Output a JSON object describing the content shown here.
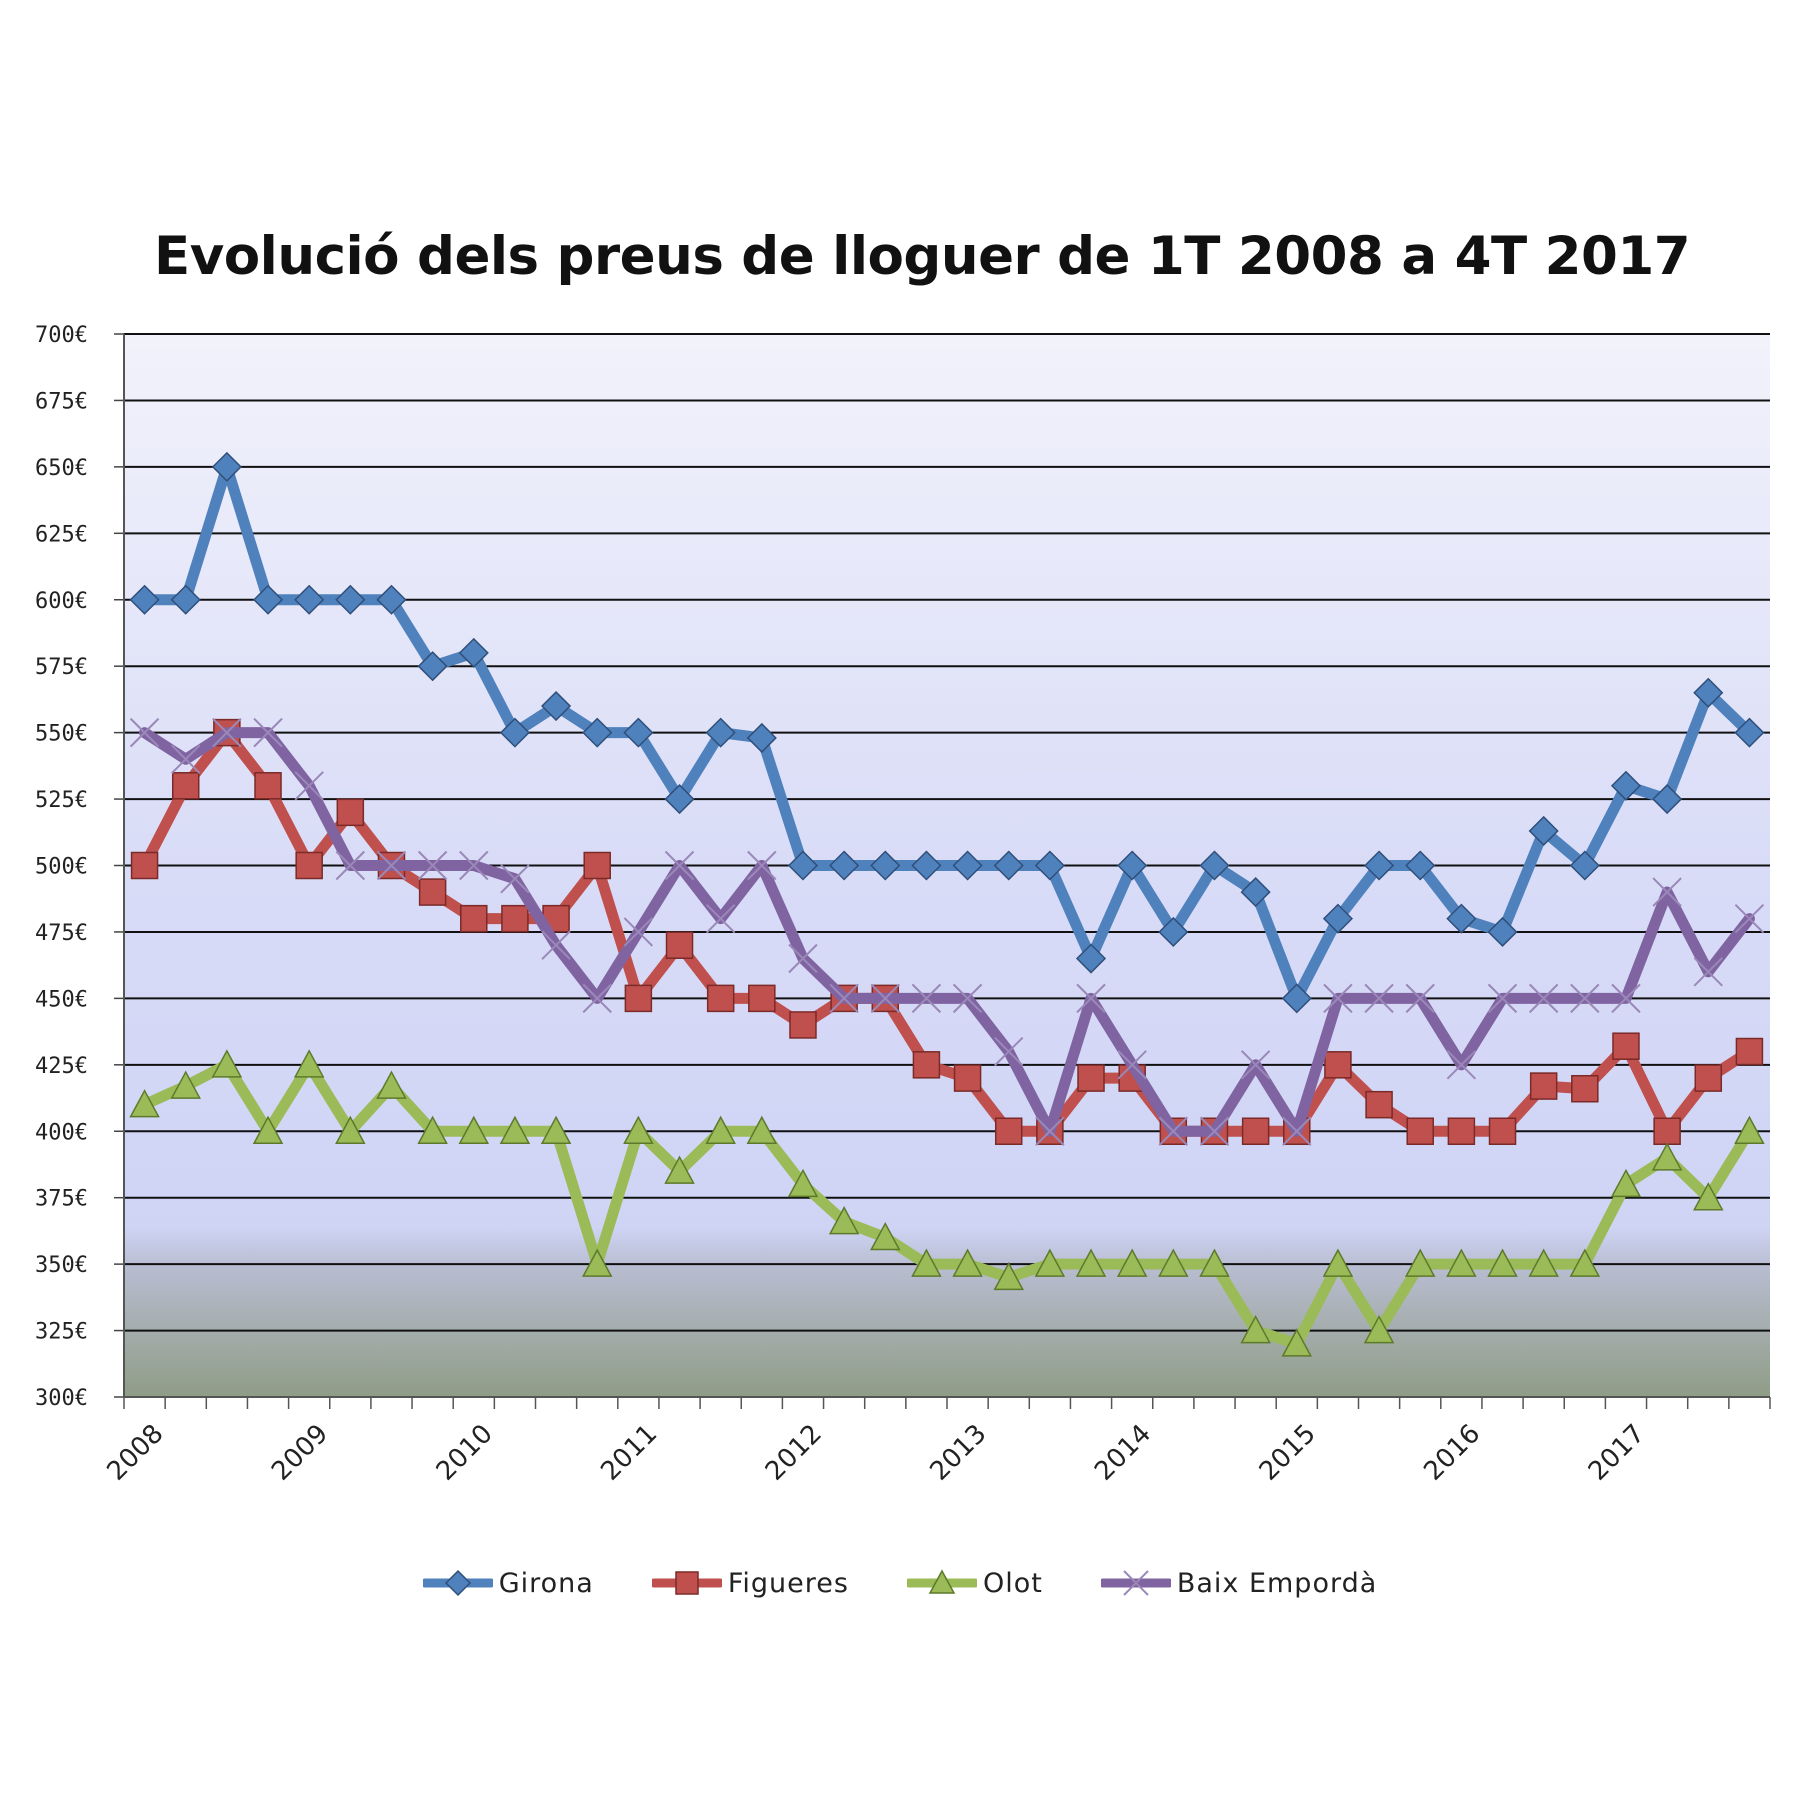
{
  "chart_data": {
    "type": "line",
    "title": "Evolució dels preus de lloguer de 1T 2008 a 4T 2017",
    "ylim": [
      300,
      700
    ],
    "y_ticks": [
      300,
      325,
      350,
      375,
      400,
      425,
      450,
      475,
      500,
      525,
      550,
      575,
      600,
      625,
      650,
      675,
      700
    ],
    "y_tick_suffix": "€",
    "x_tick_labels": [
      "2008",
      "2009",
      "2010",
      "2011",
      "2012",
      "2013",
      "2014",
      "2015",
      "2016",
      "2017"
    ],
    "points_per_year": 4,
    "grid": true,
    "legend_position": "bottom",
    "series": [
      {
        "name": "Girona",
        "color": "#4f81bd",
        "marker": "diamond",
        "values": [
          600,
          600,
          650,
          600,
          600,
          600,
          600,
          575,
          580,
          550,
          560,
          550,
          550,
          525,
          550,
          548,
          500,
          500,
          500,
          500,
          500,
          500,
          500,
          465,
          500,
          475,
          500,
          490,
          450,
          480,
          500,
          500,
          480,
          475,
          513,
          500,
          530,
          525,
          565,
          550
        ]
      },
      {
        "name": "Figueres",
        "color": "#c0504d",
        "marker": "square",
        "values": [
          500,
          530,
          550,
          530,
          500,
          520,
          500,
          490,
          480,
          480,
          480,
          500,
          450,
          470,
          450,
          450,
          440,
          450,
          450,
          425,
          420,
          400,
          400,
          420,
          420,
          400,
          400,
          400,
          400,
          425,
          410,
          400,
          400,
          400,
          417,
          416,
          432,
          400,
          420,
          430
        ]
      },
      {
        "name": "Olot",
        "color": "#9bbb59",
        "marker": "triangle",
        "values": [
          410,
          417,
          425,
          400,
          425,
          400,
          417,
          400,
          400,
          400,
          400,
          350,
          400,
          385,
          400,
          400,
          380,
          366,
          360,
          350,
          350,
          345,
          350,
          350,
          350,
          350,
          350,
          325,
          320,
          350,
          325,
          350,
          350,
          350,
          350,
          350,
          380,
          390,
          375,
          400
        ]
      },
      {
        "name": "Baix Empordà",
        "color": "#8064a2",
        "marker": "x",
        "values": [
          550,
          540,
          550,
          550,
          530,
          500,
          500,
          500,
          500,
          495,
          470,
          450,
          475,
          500,
          480,
          500,
          465,
          450,
          450,
          450,
          450,
          430,
          400,
          450,
          425,
          400,
          400,
          425,
          400,
          450,
          450,
          450,
          425,
          450,
          450,
          450,
          450,
          490,
          460,
          480
        ]
      }
    ]
  }
}
